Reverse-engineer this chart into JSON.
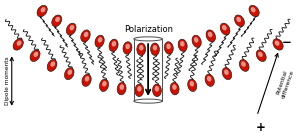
{
  "bg_color": "#ffffff",
  "title": "Polarization",
  "label_left": "Dipole moments",
  "label_right_line1": "Potential",
  "label_right_line2": "difference",
  "plus_sign": "+",
  "minus_sign": "−",
  "n_lipids": 16,
  "curve_amp": 0.28,
  "head_color_main": "#cc1100",
  "head_color_highlight": "#ffffff",
  "tail_color": "#1a1a1a",
  "cylinder_color": "#555555",
  "arrow_color": "#000000",
  "xlim": [
    -1.6,
    1.6
  ],
  "ylim": [
    -0.72,
    0.72
  ]
}
